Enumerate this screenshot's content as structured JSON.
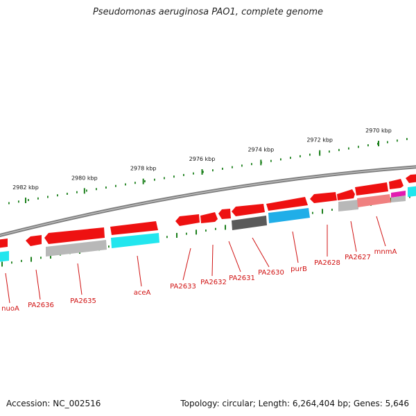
{
  "title": "Pseudomonas aeruginosa PAO1, complete genome",
  "footer": {
    "accession": "Accession: NC_002516",
    "summary": "Topology: circular; Length: 6,264,404 bp; Genes: 5,646"
  },
  "scale": {
    "unit": "kbp",
    "ticks": [
      2970,
      2972,
      2974,
      2976,
      2978,
      2980,
      2982
    ]
  },
  "colors": {
    "backbone": "#8a8a8a",
    "cds_red": "#ee1111",
    "cds_red_light": "#f08080",
    "gray": "#b8b8b8",
    "dark_gray": "#666666",
    "cyan": "#22e6ee",
    "blue": "#20aee8",
    "magenta": "#e21bb0",
    "tick": "#1a7f1a",
    "label": "#d01010"
  },
  "genes": [
    {
      "label": "nuoA"
    },
    {
      "label": "PA2636"
    },
    {
      "label": "PA2635"
    },
    {
      "label": "aceA"
    },
    {
      "label": "PA2633"
    },
    {
      "label": "PA2632"
    },
    {
      "label": "PA2631"
    },
    {
      "label": "PA2630"
    },
    {
      "label": "purB"
    },
    {
      "label": "PA2628"
    },
    {
      "label": "PA2627"
    },
    {
      "label": "mnmA"
    }
  ]
}
